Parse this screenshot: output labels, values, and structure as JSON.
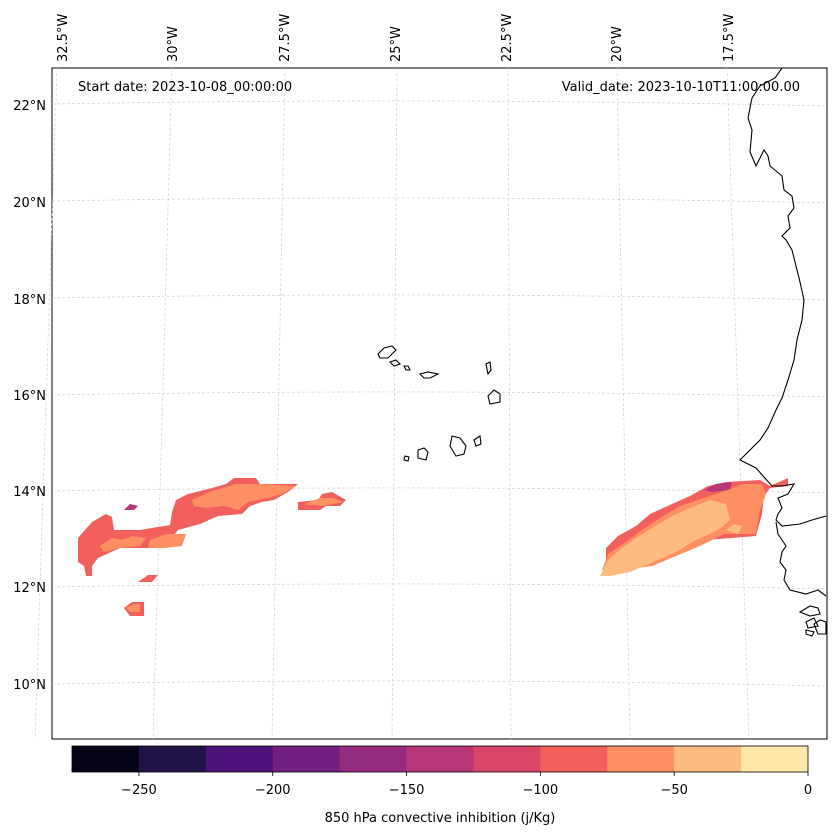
{
  "map": {
    "start_label": "Start date: 2023-10-08_00:00:00",
    "valid_label": "Valid_date: 2023-10-10T11:00:00.00",
    "lon_labels": [
      "32.5°W",
      "30°W",
      "27.5°W",
      "25°W",
      "22.5°W",
      "20°W",
      "17.5°W"
    ],
    "lat_labels": [
      "22°N",
      "20°N",
      "18°N",
      "16°N",
      "14°N",
      "12°N",
      "10°N"
    ],
    "coastline_color": "#000000",
    "gridline_color": "#d0d0d0",
    "grid": true
  },
  "colorbar": {
    "label": "850 hPa convective inhibition (j/Kg)",
    "tick_labels": [
      "−250",
      "−200",
      "−150",
      "−100",
      "−50",
      "0"
    ],
    "levels": [
      -275,
      -250,
      -225,
      -200,
      -175,
      -150,
      -125,
      -100,
      -75,
      -50,
      -25,
      0
    ],
    "colors": [
      "#050416",
      "#211247",
      "#4e127b",
      "#721f81",
      "#952c80",
      "#b83779",
      "#da4668",
      "#f1605d",
      "#fe8f63",
      "#febb80",
      "#fde7a9"
    ]
  }
}
